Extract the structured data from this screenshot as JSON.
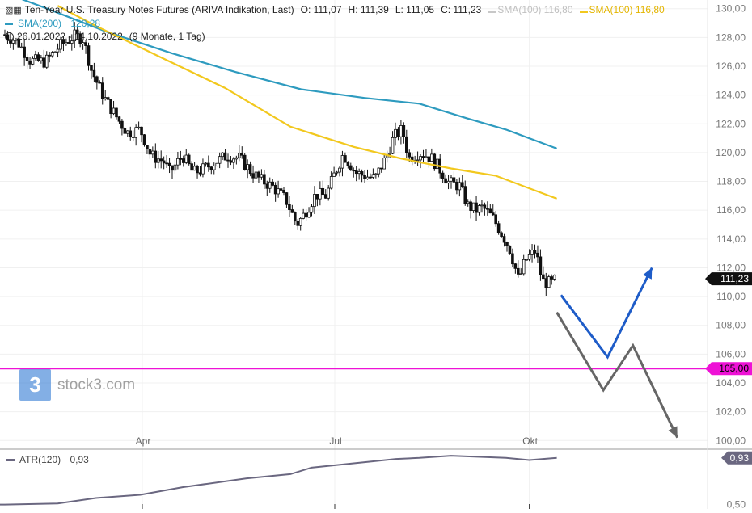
{
  "legend": {
    "title": "Ten-Year U.S. Treasury Notes Futures (ARIVA Indikation, Last)",
    "ohlc": {
      "o": "O: 111,07",
      "h": "H: 111,39",
      "l": "L: 111,05",
      "c": "C: 111,23"
    },
    "sma100_a": {
      "label": "SMA(100)",
      "value": "116,80"
    },
    "sma100_b": {
      "label": "SMA(100)",
      "value": "116,80"
    },
    "sma200": {
      "label": "SMA(200)",
      "value": "120,28"
    },
    "range": "26.01.2022 - 14.10.2022",
    "period": "(9 Monate, 1 Tag)"
  },
  "watermark": "stock3.com",
  "colors": {
    "sma200": "#2e9bbf",
    "sma100": "#f2c81e",
    "sma100_faded": "#c8c8c8",
    "support": "#ee12d6",
    "price_badge": "#111111",
    "atr": "#6a6780",
    "scenario_blue": "#1e5cc8",
    "scenario_gray": "#666666"
  },
  "chart_data": [
    {
      "type": "candlestick",
      "title": "Ten-Year U.S. Treasury Notes Futures (ARIVA Indikation, Last)",
      "ylim": [
        99.4,
        130.6
      ],
      "y_ticks": [
        "130,00",
        "128,00",
        "126,00",
        "124,00",
        "122,00",
        "120,00",
        "118,00",
        "116,00",
        "114,00",
        "112,00",
        "110,00",
        "108,00",
        "106,00",
        "104,00",
        "102,00",
        "100,00"
      ],
      "x_ticks": [
        "Apr",
        "Jul",
        "Okt"
      ],
      "last_price": 111.23,
      "last_price_label": "111,23",
      "support_level": 105.0,
      "support_label": "105,00",
      "close_path": [
        [
          "2022-01-26",
          128.2
        ],
        [
          "2022-02-01",
          127.7
        ],
        [
          "2022-02-07",
          126.4
        ],
        [
          "2022-02-14",
          126.3
        ],
        [
          "2022-02-21",
          127.4
        ],
        [
          "2022-02-28",
          128.1
        ],
        [
          "2022-03-04",
          127.9
        ],
        [
          "2022-03-08",
          125.7
        ],
        [
          "2022-03-14",
          123.8
        ],
        [
          "2022-03-21",
          122.2
        ],
        [
          "2022-03-25",
          121.4
        ],
        [
          "2022-03-31",
          121.6
        ],
        [
          "2022-04-05",
          119.8
        ],
        [
          "2022-04-11",
          119.4
        ],
        [
          "2022-04-14",
          118.6
        ],
        [
          "2022-04-20",
          119.8
        ],
        [
          "2022-04-25",
          118.6
        ],
        [
          "2022-04-29",
          118.8
        ],
        [
          "2022-05-05",
          119.3
        ],
        [
          "2022-05-11",
          119.8
        ],
        [
          "2022-05-17",
          119.6
        ],
        [
          "2022-05-23",
          118.6
        ],
        [
          "2022-05-27",
          118.1
        ],
        [
          "2022-06-02",
          117.6
        ],
        [
          "2022-06-08",
          116.7
        ],
        [
          "2022-06-13",
          115.0
        ],
        [
          "2022-06-16",
          115.6
        ],
        [
          "2022-06-22",
          117.1
        ],
        [
          "2022-06-27",
          117.0
        ],
        [
          "2022-06-30",
          118.2
        ],
        [
          "2022-07-05",
          119.9
        ],
        [
          "2022-07-11",
          118.6
        ],
        [
          "2022-07-15",
          118.4
        ],
        [
          "2022-07-20",
          118.2
        ],
        [
          "2022-07-25",
          119.6
        ],
        [
          "2022-07-29",
          121.1
        ],
        [
          "2022-08-02",
          121.6
        ],
        [
          "2022-08-05",
          119.6
        ],
        [
          "2022-08-10",
          120.0
        ],
        [
          "2022-08-15",
          119.7
        ],
        [
          "2022-08-19",
          119.0
        ],
        [
          "2022-08-24",
          117.9
        ],
        [
          "2022-08-29",
          117.7
        ],
        [
          "2022-09-02",
          116.3
        ],
        [
          "2022-09-06",
          116.0
        ],
        [
          "2022-09-09",
          116.2
        ],
        [
          "2022-09-14",
          115.4
        ],
        [
          "2022-09-19",
          114.1
        ],
        [
          "2022-09-22",
          113.2
        ],
        [
          "2022-09-26",
          111.1
        ],
        [
          "2022-09-29",
          112.5
        ],
        [
          "2022-10-04",
          113.2
        ],
        [
          "2022-10-07",
          111.1
        ],
        [
          "2022-10-11",
          110.9
        ],
        [
          "2022-10-14",
          111.23
        ]
      ],
      "series": [
        {
          "name": "SMA(200)",
          "color": "#2e9bbf",
          "points": [
            [
              "2022-01-26",
              131.1
            ],
            [
              "2022-02-15",
              130.0
            ],
            [
              "2022-03-15",
              128.4
            ],
            [
              "2022-04-15",
              126.9
            ],
            [
              "2022-05-15",
              125.6
            ],
            [
              "2022-06-15",
              124.4
            ],
            [
              "2022-07-15",
              123.8
            ],
            [
              "2022-08-10",
              123.4
            ],
            [
              "2022-09-01",
              122.4
            ],
            [
              "2022-09-20",
              121.6
            ],
            [
              "2022-10-14",
              120.28
            ]
          ]
        },
        {
          "name": "SMA(100)",
          "color": "#f2c81e",
          "points": [
            [
              "2022-02-20",
              130.2
            ],
            [
              "2022-03-10",
              128.8
            ],
            [
              "2022-04-10",
              126.6
            ],
            [
              "2022-05-10",
              124.5
            ],
            [
              "2022-06-10",
              121.8
            ],
            [
              "2022-07-10",
              120.4
            ],
            [
              "2022-08-01",
              119.6
            ],
            [
              "2022-08-25",
              118.9
            ],
            [
              "2022-09-15",
              118.4
            ],
            [
              "2022-10-14",
              116.8
            ]
          ]
        }
      ],
      "annotations": [
        {
          "name": "bullish-scenario",
          "color": "#1e5cc8",
          "path": [
            [
              "2022-10-16",
              110.1
            ],
            [
              "2022-11-07",
              105.8
            ],
            [
              "2022-11-28",
              112.0
            ]
          ]
        },
        {
          "name": "bearish-scenario",
          "color": "#666666",
          "path": [
            [
              "2022-10-14",
              108.9
            ],
            [
              "2022-11-05",
              103.5
            ],
            [
              "2022-11-19",
              106.6
            ],
            [
              "2022-12-10",
              100.2
            ]
          ]
        }
      ]
    },
    {
      "type": "line",
      "series": [
        {
          "name": "ATR(120)",
          "value_label": "0,93",
          "color": "#6a6780"
        }
      ],
      "ylim": [
        0.46,
        1.01
      ],
      "y_ticks": [
        "0,50"
      ],
      "last_value": 0.93,
      "last_label": "0,93",
      "points": [
        [
          "2022-01-26",
          0.5
        ],
        [
          "2022-02-20",
          0.51
        ],
        [
          "2022-03-10",
          0.56
        ],
        [
          "2022-03-31",
          0.59
        ],
        [
          "2022-04-20",
          0.66
        ],
        [
          "2022-05-20",
          0.74
        ],
        [
          "2022-06-10",
          0.78
        ],
        [
          "2022-06-20",
          0.84
        ],
        [
          "2022-07-10",
          0.88
        ],
        [
          "2022-07-30",
          0.92
        ],
        [
          "2022-08-10",
          0.93
        ],
        [
          "2022-08-25",
          0.95
        ],
        [
          "2022-09-20",
          0.93
        ],
        [
          "2022-10-01",
          0.91
        ],
        [
          "2022-10-14",
          0.93
        ]
      ]
    }
  ]
}
